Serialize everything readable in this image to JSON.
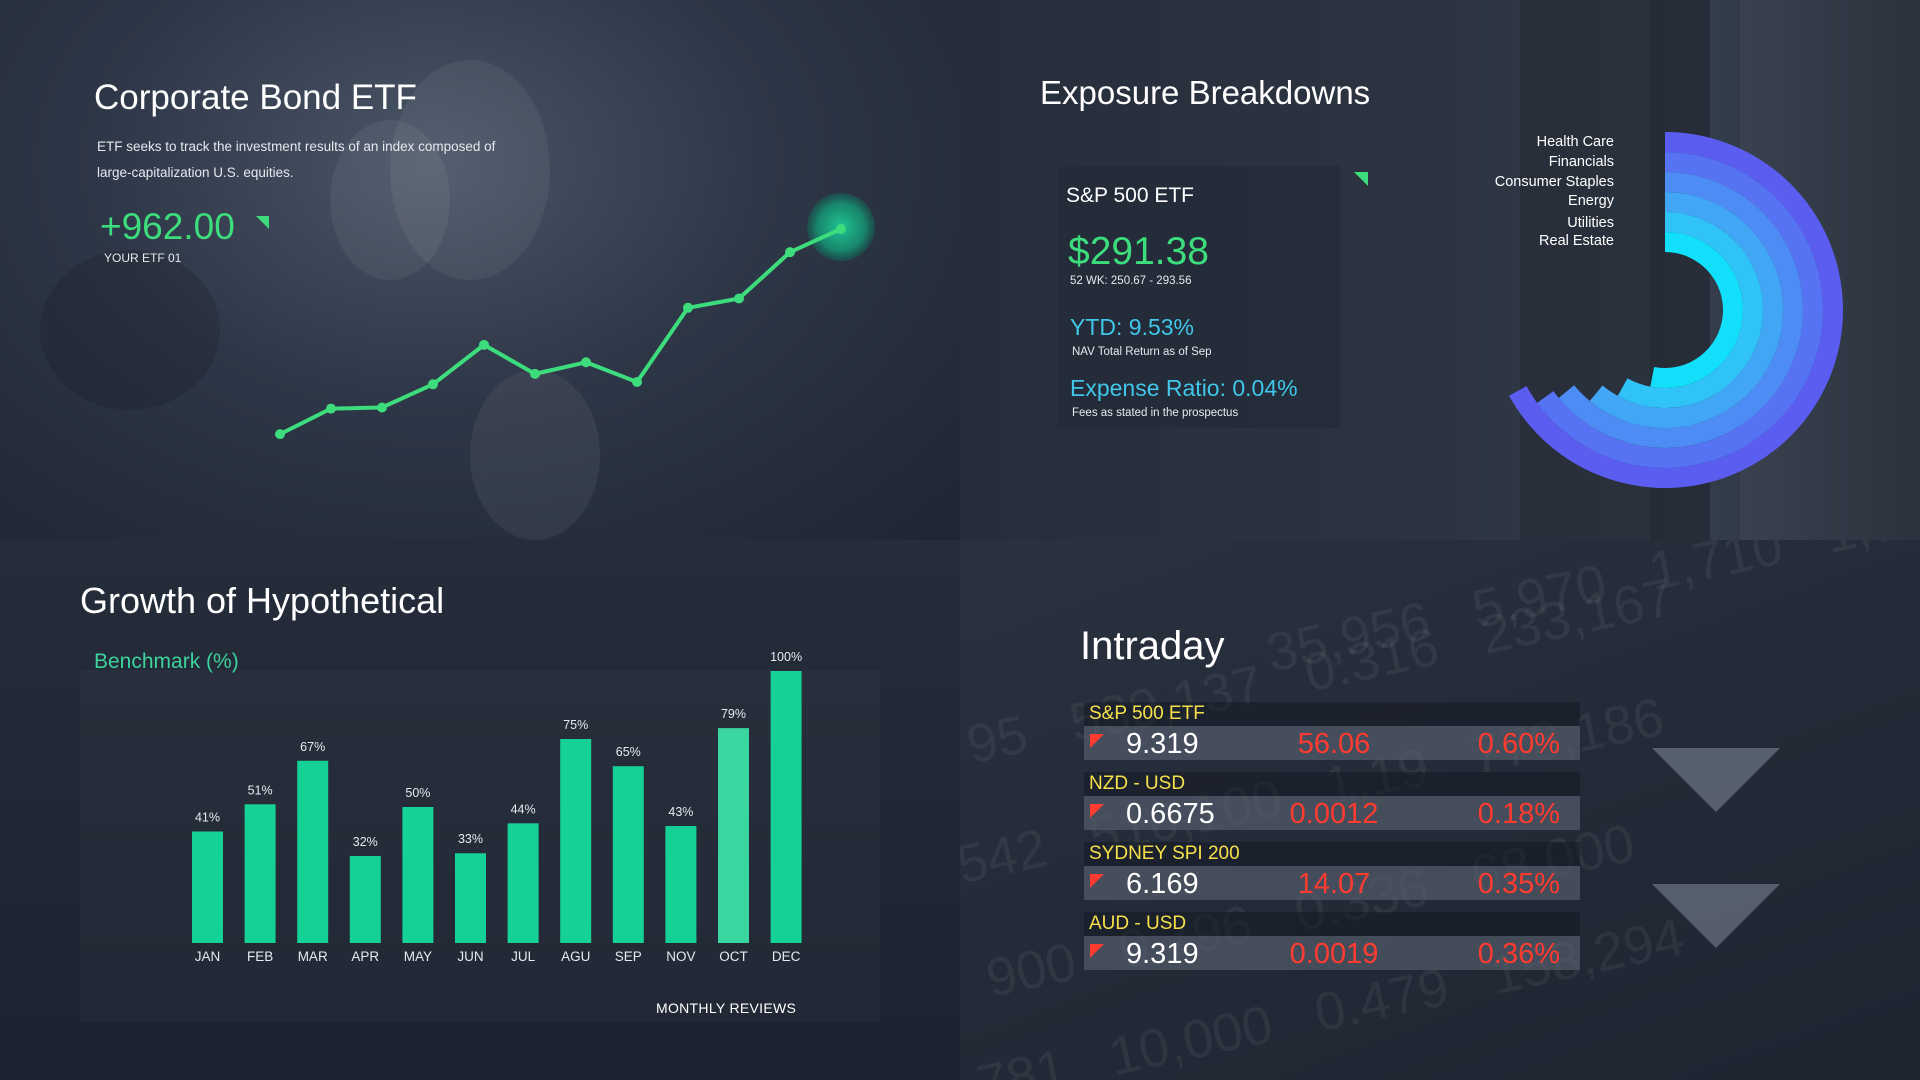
{
  "etf_panel": {
    "title": "Corporate Bond ETF",
    "description": "ETF seeks to track the investment results of an index composed of large-capitalization U.S. equities.",
    "value": "+962.00",
    "label": "YOUR ETF 01",
    "accent": "#3ddc7c"
  },
  "exposure": {
    "title": "Exposure Breakdowns",
    "fund_name": "S&P 500 ETF",
    "price": "$291.38",
    "range_52wk": "52 WK: 250.67 - 293.56",
    "ytd": "YTD:  9.53%",
    "ytd_note": "NAV Total Return as of Sep",
    "expense_ratio": "Expense Ratio: 0.04%",
    "expense_note": "Fees as stated in the prospectus",
    "accent_price": "#3ddc7c",
    "accent_info": "#3fc6e8"
  },
  "growth": {
    "title": "Growth of Hypothetical",
    "subtitle": "Benchmark (%)",
    "footer": "MONTHLY REVIEWS"
  },
  "intraday": {
    "title": "Intraday",
    "rows": [
      {
        "name": "S&P 500 ETF",
        "price": "9.319",
        "change": "56.06",
        "pct": "0.60%"
      },
      {
        "name": "NZD - USD",
        "price": "0.6675",
        "change": "0.0012",
        "pct": "0.18%"
      },
      {
        "name": "SYDNEY SPI 200",
        "price": "6.169",
        "change": "14.07",
        "pct": "0.35%"
      },
      {
        "name": "AUD - USD",
        "price": "9.319",
        "change": "0.0019",
        "pct": "0.36%"
      }
    ],
    "icons": [
      "down-arrow-icon",
      "down-trend-icon"
    ],
    "colors": {
      "name": "#f5e04a",
      "negative": "#ff3b30"
    }
  },
  "chart_data": [
    {
      "type": "line",
      "title": "",
      "x": [
        1,
        2,
        3,
        4,
        5,
        6,
        7,
        8,
        9,
        10,
        11,
        12
      ],
      "series": [
        {
          "values": [
            18,
            40,
            41,
            61,
            95,
            70,
            80,
            63,
            127,
            135,
            175,
            195
          ]
        }
      ],
      "ylim": [
        0,
        220
      ],
      "grid": false,
      "color": "#3ddc7c",
      "highlight_last_point": true
    },
    {
      "type": "radial-bar",
      "title": "",
      "categories": [
        "Health Care",
        "Financials",
        "Consumer Staples",
        "Energy",
        "Utilities",
        "Real Estate"
      ],
      "values": [
        67,
        65,
        64,
        61,
        58,
        53
      ],
      "unit": "percent-of-circle",
      "legend": "top-left",
      "colors": [
        "#5b5cf0",
        "#5573f2",
        "#4c8cf4",
        "#41a6f6",
        "#2fc3f8",
        "#12e0fb"
      ]
    },
    {
      "type": "bar",
      "title": "",
      "categories": [
        "JAN",
        "FEB",
        "MAR",
        "APR",
        "MAY",
        "JUN",
        "JUL",
        "AGU",
        "SEP",
        "NOV",
        "OCT",
        "DEC"
      ],
      "values": [
        41,
        51,
        67,
        32,
        50,
        33,
        44,
        75,
        65,
        43,
        79,
        100
      ],
      "value_labels": [
        "41%",
        "51%",
        "67%",
        "32%",
        "50%",
        "33%",
        "44%",
        "75%",
        "65%",
        "43%",
        "79%",
        "100%"
      ],
      "ylim": [
        0,
        100
      ],
      "grid": false,
      "colors": {
        "bar": "#16d196",
        "highlight": "#3ad6a0"
      }
    }
  ]
}
